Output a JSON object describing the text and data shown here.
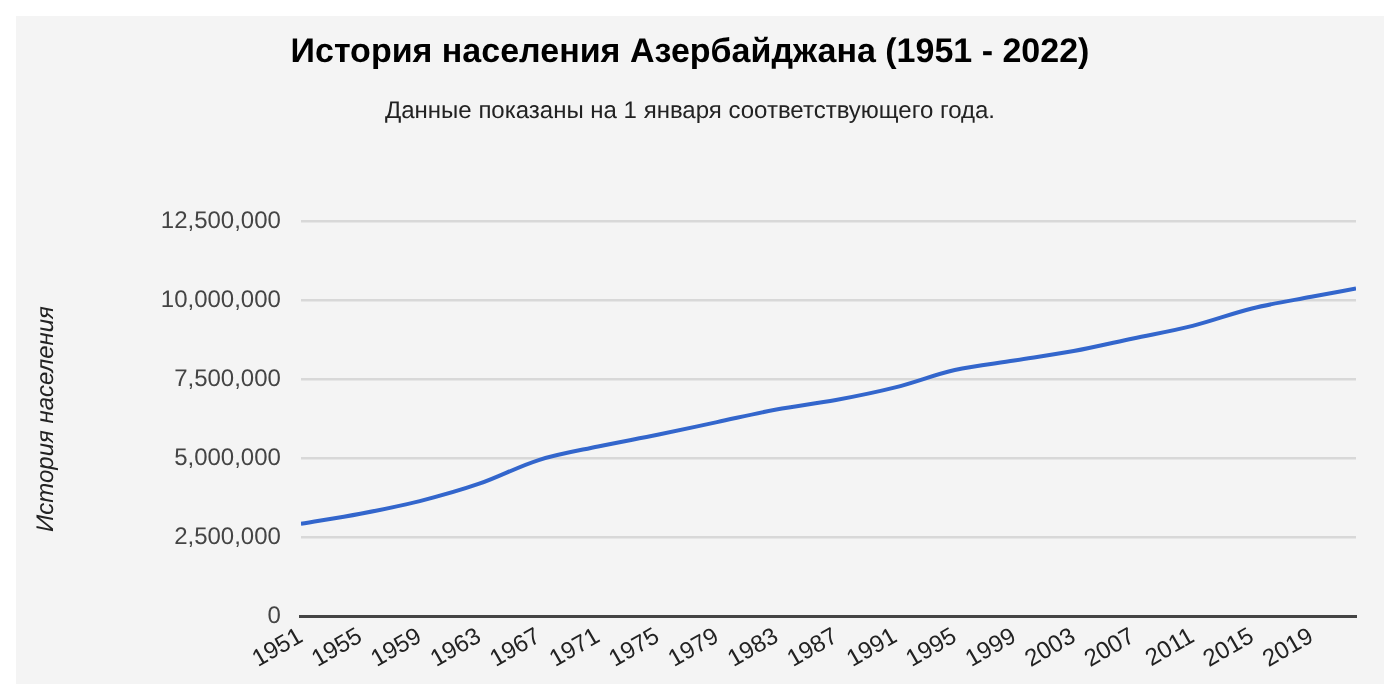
{
  "chart_data": {
    "type": "line",
    "title": "История населения Азербайджана (1951 - 2022)",
    "subtitle": "Данные показаны на 1 января соответствующего года.",
    "ylabel": "История населения",
    "x": [
      1951,
      1955,
      1959,
      1963,
      1967,
      1971,
      1975,
      1979,
      1983,
      1987,
      1991,
      1995,
      1999,
      2003,
      2007,
      2011,
      2015,
      2019,
      2022
    ],
    "series": [
      {
        "color": "#3366cc",
        "values": [
          2930000,
          3250000,
          3650000,
          4200000,
          4950000,
          5380000,
          5750000,
          6150000,
          6550000,
          6850000,
          7250000,
          7800000,
          8100000,
          8400000,
          8800000,
          9200000,
          9750000,
          10120000,
          10380000
        ]
      }
    ],
    "xlim": [
      1951,
      2022
    ],
    "xticks": [
      1951,
      1955,
      1959,
      1963,
      1967,
      1971,
      1975,
      1979,
      1983,
      1987,
      1991,
      1995,
      1999,
      2003,
      2007,
      2011,
      2015,
      2019
    ],
    "ylim": [
      0,
      12500000
    ],
    "yticks": [
      {
        "value": 0,
        "label": "0"
      },
      {
        "value": 2500000,
        "label": "2,500,000"
      },
      {
        "value": 5000000,
        "label": "5,000,000"
      },
      {
        "value": 7500000,
        "label": "7,500,000"
      },
      {
        "value": 10000000,
        "label": "10,000,000"
      },
      {
        "value": 12500000,
        "label": "12,500,000"
      }
    ],
    "grid": "y",
    "legend": false,
    "marker": "none",
    "line_style": "solid"
  }
}
